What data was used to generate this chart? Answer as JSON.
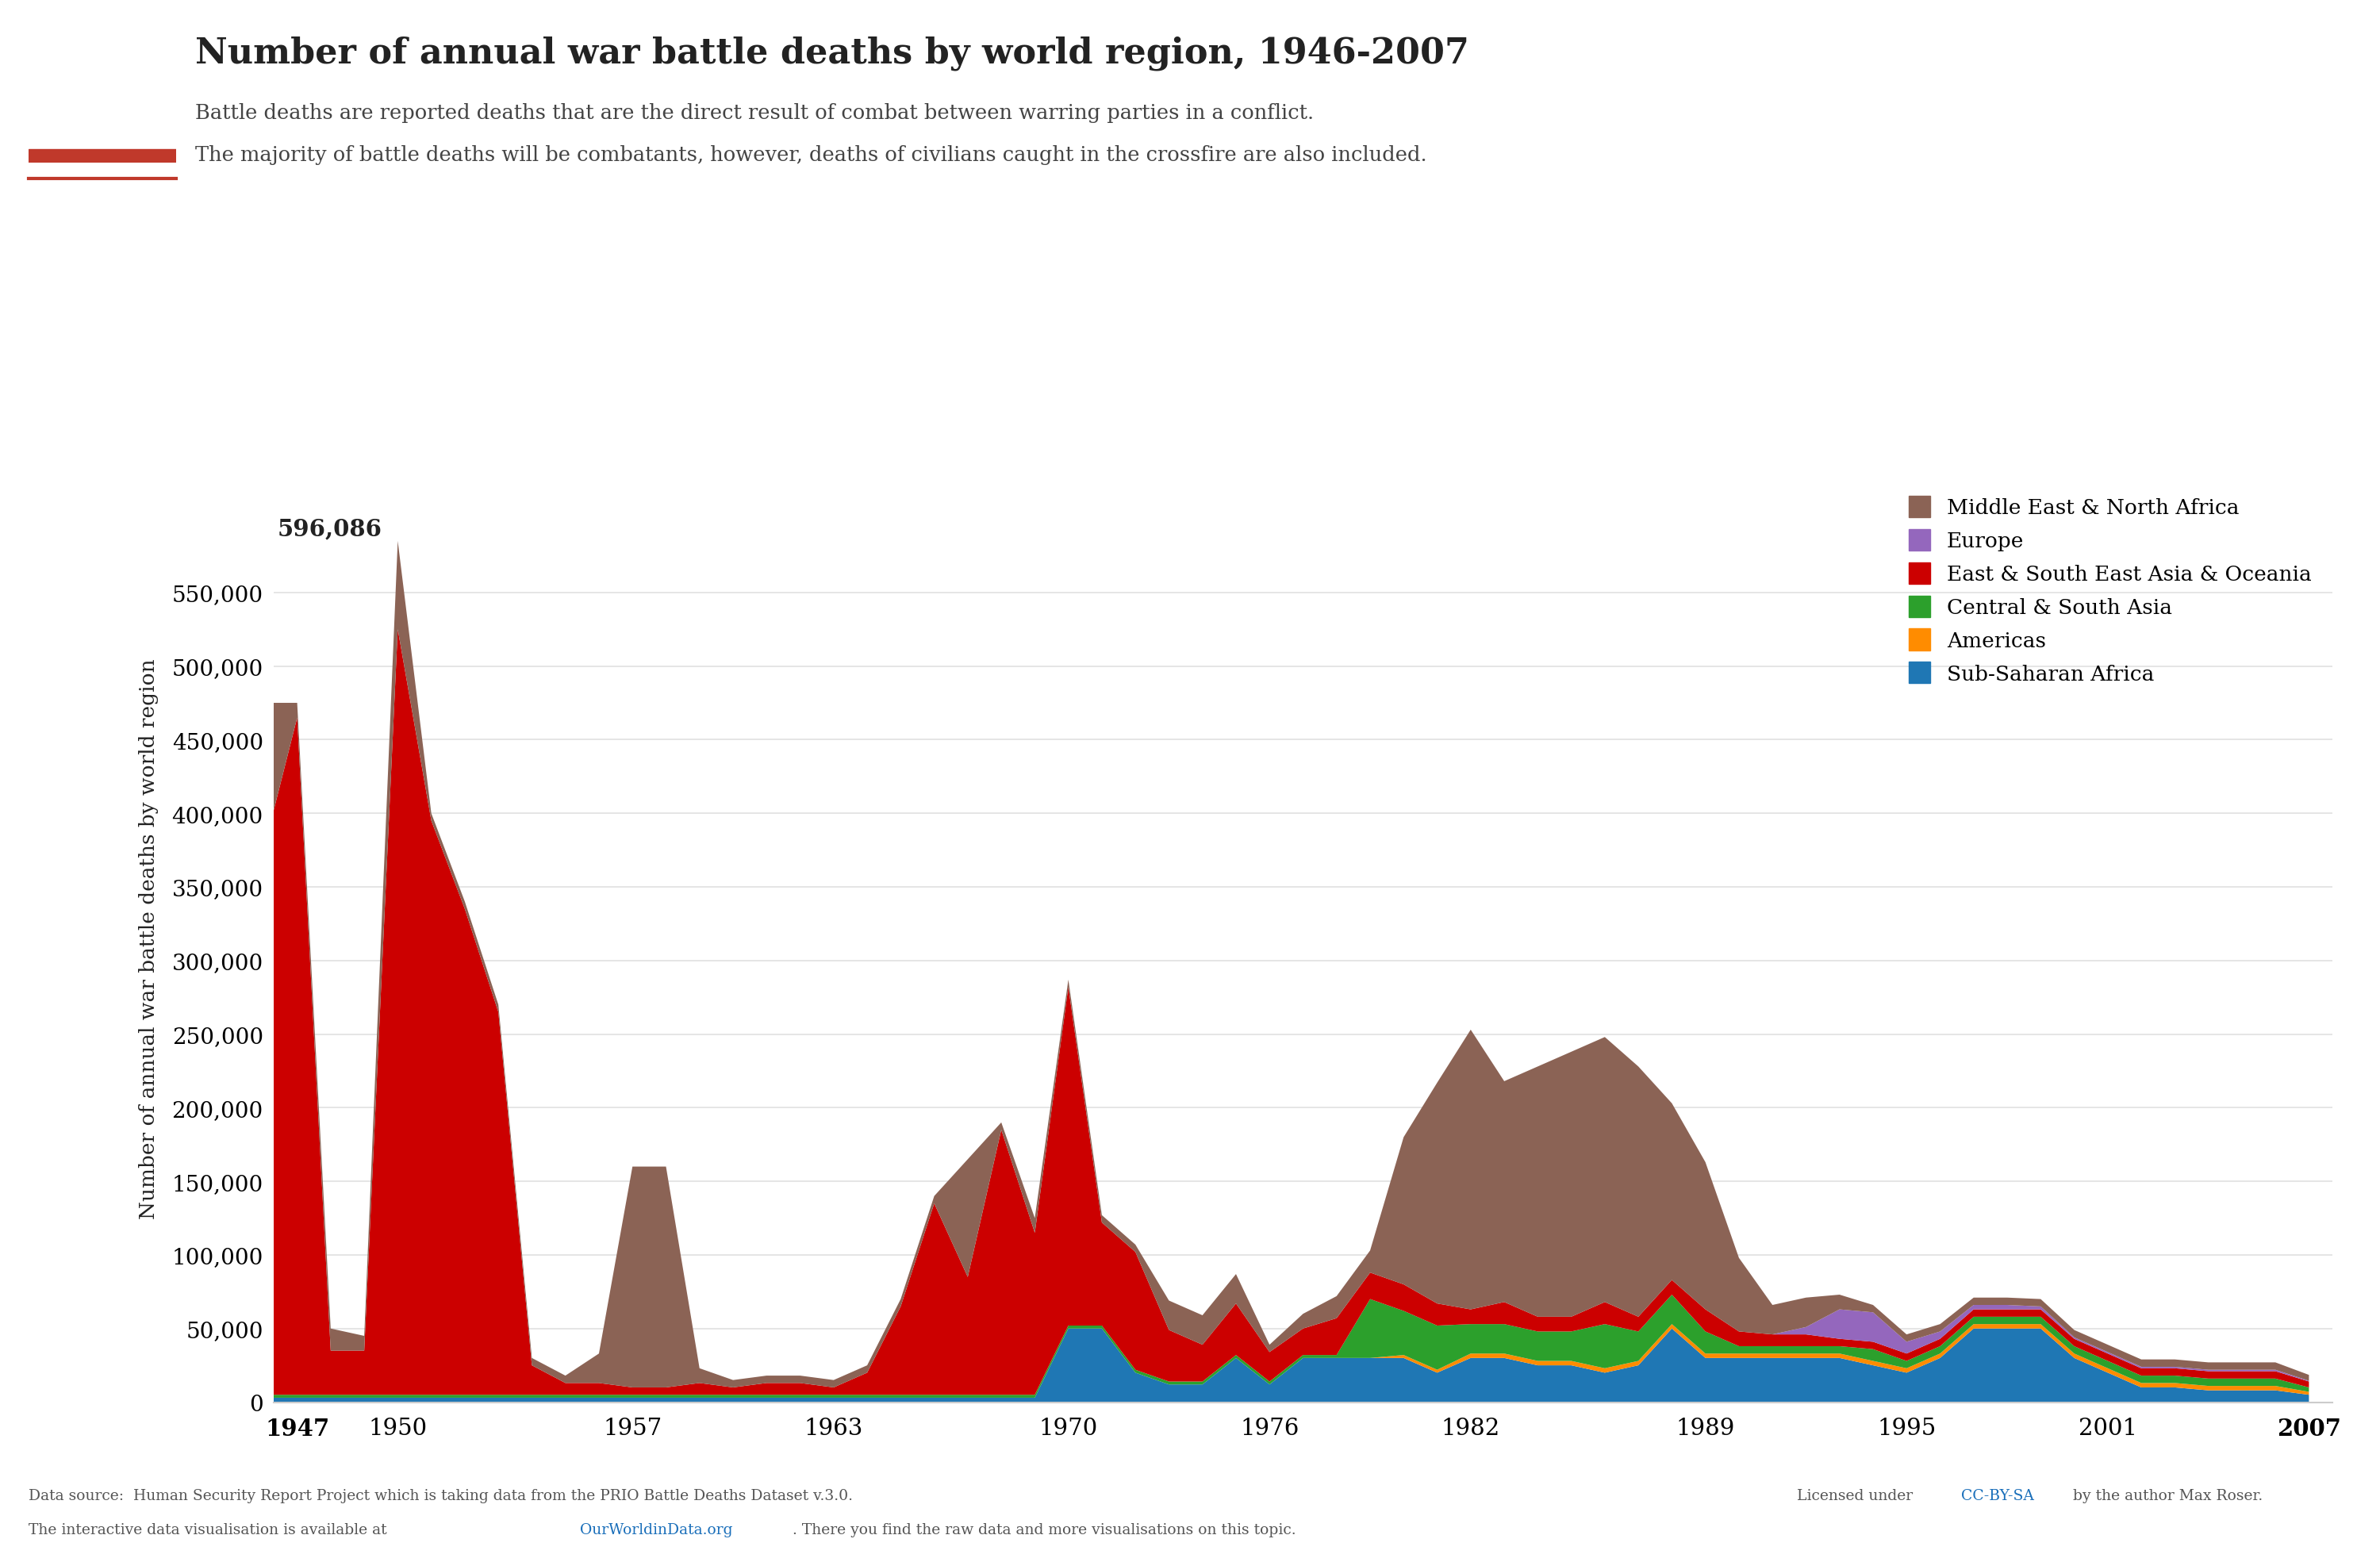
{
  "title": "Number of annual war battle deaths by world region, 1946-2007",
  "subtitle_line1": "Battle deaths are reported deaths that are the direct result of combat between warring parties in a conflict.",
  "subtitle_line2": "The majority of battle deaths will be combatants, however, deaths of civilians caught in the crossfire are also included.",
  "ylabel": "Number of annual war battle deaths by world region",
  "years": [
    1946,
    1947,
    1948,
    1949,
    1950,
    1951,
    1952,
    1953,
    1954,
    1955,
    1956,
    1957,
    1958,
    1959,
    1960,
    1961,
    1962,
    1963,
    1964,
    1965,
    1966,
    1967,
    1968,
    1969,
    1970,
    1971,
    1972,
    1973,
    1974,
    1975,
    1976,
    1977,
    1978,
    1979,
    1980,
    1981,
    1982,
    1983,
    1984,
    1985,
    1986,
    1987,
    1988,
    1989,
    1990,
    1991,
    1992,
    1993,
    1994,
    1995,
    1996,
    1997,
    1998,
    1999,
    2000,
    2001,
    2002,
    2003,
    2004,
    2005,
    2006,
    2007
  ],
  "series": [
    {
      "label": "Sub-Saharan Africa",
      "color": "#1F77B4",
      "values": [
        3000,
        3000,
        3000,
        3000,
        3000,
        3000,
        3000,
        3000,
        3000,
        3000,
        3000,
        3000,
        3000,
        3000,
        3000,
        3000,
        3000,
        3000,
        3000,
        3000,
        3000,
        3000,
        3000,
        3000,
        50000,
        50000,
        20000,
        12000,
        12000,
        30000,
        12000,
        30000,
        30000,
        30000,
        30000,
        20000,
        30000,
        30000,
        25000,
        25000,
        20000,
        25000,
        50000,
        30000,
        30000,
        30000,
        30000,
        30000,
        25000,
        20000,
        30000,
        50000,
        50000,
        50000,
        30000,
        20000,
        10000,
        10000,
        8000,
        8000,
        8000,
        5000
      ]
    },
    {
      "label": "Americas",
      "color": "#FF8C00",
      "values": [
        0,
        0,
        0,
        0,
        0,
        0,
        0,
        0,
        0,
        0,
        0,
        0,
        0,
        0,
        0,
        0,
        0,
        0,
        0,
        0,
        0,
        0,
        0,
        0,
        0,
        0,
        0,
        0,
        0,
        0,
        0,
        0,
        0,
        0,
        2000,
        2000,
        3000,
        3000,
        3000,
        3000,
        3000,
        3000,
        3000,
        3000,
        3000,
        3000,
        3000,
        3000,
        3000,
        3000,
        3000,
        3000,
        3000,
        3000,
        3000,
        3000,
        3000,
        3000,
        3000,
        3000,
        3000,
        2000
      ]
    },
    {
      "label": "Central & South Asia",
      "color": "#2CA02C",
      "values": [
        2000,
        2000,
        2000,
        2000,
        2000,
        2000,
        2000,
        2000,
        2000,
        2000,
        2000,
        2000,
        2000,
        2000,
        2000,
        2000,
        2000,
        2000,
        2000,
        2000,
        2000,
        2000,
        2000,
        2000,
        2000,
        2000,
        2000,
        2000,
        2000,
        2000,
        2000,
        2000,
        2000,
        40000,
        30000,
        30000,
        20000,
        20000,
        20000,
        20000,
        30000,
        20000,
        20000,
        15000,
        5000,
        5000,
        5000,
        5000,
        8000,
        5000,
        5000,
        5000,
        5000,
        5000,
        5000,
        5000,
        5000,
        5000,
        5000,
        5000,
        5000,
        3000
      ]
    },
    {
      "label": "East & South East Asia & Oceania",
      "color": "#CC0000",
      "values": [
        370000,
        460000,
        30000,
        30000,
        520000,
        390000,
        330000,
        260000,
        20000,
        8000,
        8000,
        5000,
        5000,
        8000,
        5000,
        8000,
        8000,
        5000,
        15000,
        60000,
        130000,
        80000,
        180000,
        110000,
        230000,
        70000,
        80000,
        35000,
        25000,
        35000,
        20000,
        18000,
        25000,
        18000,
        18000,
        15000,
        10000,
        15000,
        10000,
        10000,
        15000,
        10000,
        10000,
        15000,
        10000,
        8000,
        8000,
        5000,
        5000,
        5000,
        5000,
        5000,
        5000,
        5000,
        5000,
        5000,
        5000,
        5000,
        5000,
        5000,
        5000,
        4000
      ]
    },
    {
      "label": "Europe",
      "color": "#9467BD",
      "values": [
        0,
        0,
        0,
        0,
        0,
        0,
        0,
        0,
        0,
        0,
        0,
        0,
        0,
        0,
        0,
        0,
        0,
        0,
        0,
        0,
        0,
        0,
        0,
        0,
        0,
        0,
        0,
        0,
        0,
        0,
        0,
        0,
        0,
        0,
        0,
        0,
        0,
        0,
        0,
        0,
        0,
        0,
        0,
        0,
        0,
        0,
        5000,
        20000,
        20000,
        8000,
        5000,
        3000,
        3000,
        2000,
        1000,
        1000,
        1000,
        1000,
        1000,
        1000,
        1000,
        500
      ]
    },
    {
      "label": "Middle East & North Africa",
      "color": "#8B6355",
      "values": [
        100000,
        10000,
        15000,
        10000,
        60000,
        5000,
        5000,
        5000,
        5000,
        5000,
        20000,
        150000,
        150000,
        10000,
        5000,
        5000,
        5000,
        5000,
        5000,
        5000,
        5000,
        80000,
        5000,
        10000,
        5000,
        5000,
        5000,
        20000,
        20000,
        20000,
        5000,
        10000,
        15000,
        15000,
        100000,
        150000,
        190000,
        150000,
        170000,
        180000,
        180000,
        170000,
        120000,
        100000,
        50000,
        20000,
        20000,
        10000,
        5000,
        5000,
        5000,
        5000,
        5000,
        5000,
        5000,
        5000,
        5000,
        5000,
        5000,
        5000,
        5000,
        4000
      ]
    }
  ],
  "ylim": [
    0,
    630000
  ],
  "yticks": [
    0,
    50000,
    100000,
    150000,
    200000,
    250000,
    300000,
    350000,
    400000,
    450000,
    500000,
    550000
  ],
  "peak_label": "596,086",
  "xticks": [
    1947,
    1950,
    1957,
    1963,
    1970,
    1976,
    1982,
    1989,
    1995,
    2001,
    2007
  ],
  "background_color": "#ffffff",
  "logo_bg": "#1a3a5c",
  "logo_accent": "#C0392B",
  "grid_color": "#e0e0e0",
  "axis_color": "#cccccc",
  "text_color": "#222222",
  "subtitle_color": "#444444",
  "footer_color": "#555555",
  "link_color": "#1a6fba"
}
